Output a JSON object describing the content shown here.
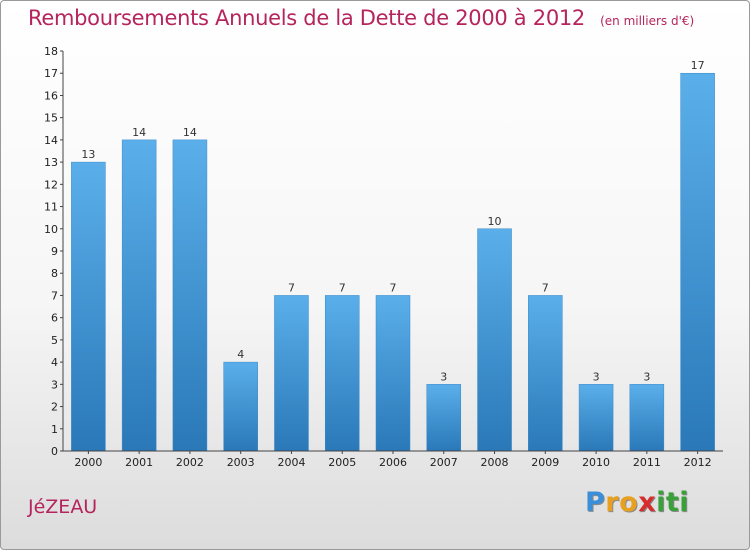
{
  "chart_data": {
    "type": "bar",
    "title": "Remboursements Annuels de la Dette de 2000 à 2012",
    "subtitle": "(en milliers d'€)",
    "categories": [
      "2000",
      "2001",
      "2002",
      "2003",
      "2004",
      "2005",
      "2006",
      "2007",
      "2008",
      "2009",
      "2010",
      "2011",
      "2012"
    ],
    "values": [
      13,
      14,
      14,
      4,
      7,
      7,
      7,
      3,
      10,
      7,
      3,
      3,
      17
    ],
    "ylim": [
      0,
      18
    ],
    "yticks": [
      0,
      1,
      2,
      3,
      4,
      5,
      6,
      7,
      8,
      9,
      10,
      11,
      12,
      13,
      14,
      15,
      16,
      17,
      18
    ],
    "xlabel": "",
    "ylabel": "",
    "grid": false,
    "bar_color": "#4a9fdf"
  },
  "commune": "JéZEAU",
  "logo": {
    "letters": [
      "P",
      "r",
      "o",
      "x",
      "i",
      "t",
      "i"
    ],
    "colors": [
      "#3a8fd8",
      "#e8a020",
      "#e8a020",
      "#d62e2e",
      "#3aa13a",
      "#3aa13a",
      "#3aa13a"
    ]
  }
}
